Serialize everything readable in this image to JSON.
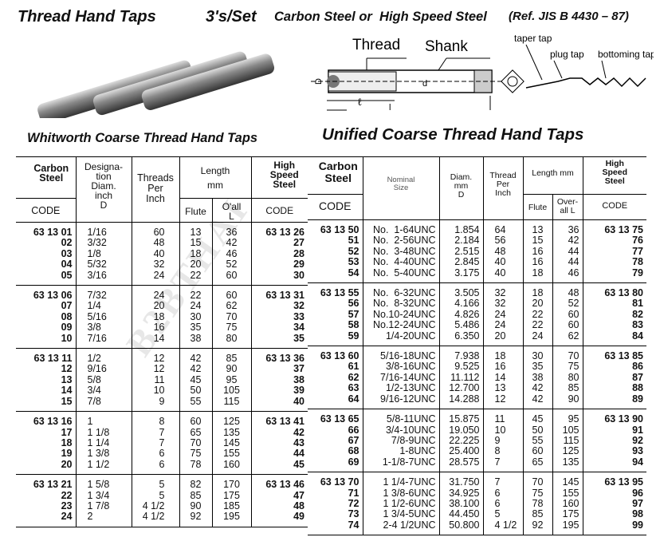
{
  "header": {
    "title": "Thread Hand Taps",
    "set": "3's/Set",
    "material": "Carbon Steel or  High Speed Steel",
    "ref": "(Ref. JIS B 4430 – 87)"
  },
  "diagram": {
    "thread": "Thread",
    "shank": "Shank",
    "D": "D",
    "d": "d",
    "l_small": "ℓ",
    "L": "l",
    "taper": "taper tap",
    "plug": "plug tap",
    "bottoming": "bottoming tap"
  },
  "watermark": "B2BTHAI",
  "whitworth": {
    "title": "Whitworth Coarse Thread Hand Taps",
    "headers": {
      "carbon": "Carbon Steel",
      "code": "CODE",
      "desig": "Designa-\ntion\nDiam.\ninch\nD",
      "threads": "Threads\nPer\nInch",
      "length": "Length\nmm",
      "flute": "Flute",
      "oall": "O'all\nL",
      "hss": "High\nSpeed\nSteel",
      "hss_code": "CODE"
    },
    "groups": [
      {
        "code": [
          "63 13 01",
          "02",
          "03",
          "04",
          "05"
        ],
        "diam": [
          "1/16",
          "3/32",
          "1/8",
          "5/32",
          "3/16"
        ],
        "tpi": [
          "60",
          "48",
          "40",
          "32",
          "24"
        ],
        "flute": [
          "13",
          "15",
          "18",
          "20",
          "22"
        ],
        "oall": [
          "36",
          "42",
          "46",
          "52",
          "60"
        ],
        "hss": [
          "63 13 26",
          "27",
          "28",
          "29",
          "30"
        ]
      },
      {
        "code": [
          "63 13 06",
          "07",
          "08",
          "09",
          "10"
        ],
        "diam": [
          "7/32",
          "1/4",
          "5/16",
          "3/8",
          "7/16"
        ],
        "tpi": [
          "24",
          "20",
          "18",
          "16",
          "14"
        ],
        "flute": [
          "22",
          "24",
          "30",
          "35",
          "38"
        ],
        "oall": [
          "60",
          "62",
          "70",
          "75",
          "80"
        ],
        "hss": [
          "63 13 31",
          "32",
          "33",
          "34",
          "35"
        ]
      },
      {
        "code": [
          "63 13 11",
          "12",
          "13",
          "14",
          "15"
        ],
        "diam": [
          "1/2",
          "9/16",
          "5/8",
          "3/4",
          "7/8"
        ],
        "tpi": [
          "12",
          "12",
          "11",
          "10",
          "9"
        ],
        "flute": [
          "42",
          "42",
          "45",
          "50",
          "55"
        ],
        "oall": [
          "85",
          "90",
          "95",
          "105",
          "115"
        ],
        "hss": [
          "63 13 36",
          "37",
          "38",
          "39",
          "40"
        ]
      },
      {
        "code": [
          "63 13 16",
          "17",
          "18",
          "19",
          "20"
        ],
        "diam": [
          "1",
          "1 1/8",
          "1 1/4",
          "1 3/8",
          "1 1/2"
        ],
        "tpi": [
          "8",
          "7",
          "7",
          "6",
          "6"
        ],
        "flute": [
          "60",
          "65",
          "70",
          "75",
          "78"
        ],
        "oall": [
          "125",
          "135",
          "145",
          "155",
          "160"
        ],
        "hss": [
          "63 13 41",
          "42",
          "43",
          "44",
          "45"
        ]
      },
      {
        "code": [
          "63 13 21",
          "22",
          "23",
          "24"
        ],
        "diam": [
          "1 5/8",
          "1 3/4",
          "1 7/8",
          "2"
        ],
        "tpi": [
          "5",
          "5",
          "4 1/2",
          "4 1/2"
        ],
        "flute": [
          "82",
          "85",
          "90",
          "92"
        ],
        "oall": [
          "170",
          "175",
          "185",
          "195"
        ],
        "hss": [
          "63 13 46",
          "47",
          "48",
          "49"
        ]
      }
    ]
  },
  "unified": {
    "title": "Unified Coarse Thread Hand Taps",
    "headers": {
      "carbon": "Carbon\nSteel",
      "code": "CODE",
      "nominal": "Nominal\nSize",
      "diam": "Diam.\nmm\nD",
      "thread": "Thread\nPer\nInch",
      "length": "Length mm",
      "flute": "Flute",
      "overall": "Over-\nall L",
      "hss": "High\nSpeed\nSteel",
      "hss_code": "CODE"
    },
    "groups": [
      {
        "code": [
          "63 13 50",
          "51",
          "52",
          "53",
          "54"
        ],
        "nominal": [
          "No.  1-64UNC",
          "No.  2-56UNC",
          "No.  3-48UNC",
          "No.  4-40UNC",
          "No.  5-40UNC"
        ],
        "diam": [
          "1.854",
          "2.184",
          "2.515",
          "2.845",
          "3.175"
        ],
        "tpi": [
          "64",
          "56",
          "48",
          "40",
          "40"
        ],
        "flute": [
          "13",
          "15",
          "16",
          "16",
          "18"
        ],
        "oall": [
          "36",
          "42",
          "44",
          "44",
          "46"
        ],
        "hss": [
          "63 13 75",
          "76",
          "77",
          "78",
          "79"
        ]
      },
      {
        "code": [
          "63 13 55",
          "56",
          "57",
          "58",
          "59"
        ],
        "nominal": [
          "No.  6-32UNC",
          "No.  8-32UNC",
          "No.10-24UNC",
          "No.12-24UNC",
          "1/4-20UNC"
        ],
        "diam": [
          "3.505",
          "4.166",
          "4.826",
          "5.486",
          "6.350"
        ],
        "tpi": [
          "32",
          "32",
          "24",
          "24",
          "20"
        ],
        "flute": [
          "18",
          "20",
          "22",
          "22",
          "24"
        ],
        "oall": [
          "48",
          "52",
          "60",
          "60",
          "62"
        ],
        "hss": [
          "63 13 80",
          "81",
          "82",
          "83",
          "84"
        ]
      },
      {
        "code": [
          "63 13 60",
          "61",
          "62",
          "63",
          "64"
        ],
        "nominal": [
          "5/16-18UNC",
          "3/8-16UNC",
          "7/16-14UNC",
          "1/2-13UNC",
          "9/16-12UNC"
        ],
        "diam": [
          "7.938",
          "9.525",
          "11.112",
          "12.700",
          "14.288"
        ],
        "tpi": [
          "18",
          "16",
          "14",
          "13",
          "12"
        ],
        "flute": [
          "30",
          "35",
          "38",
          "42",
          "42"
        ],
        "oall": [
          "70",
          "75",
          "80",
          "85",
          "90"
        ],
        "hss": [
          "63 13 85",
          "86",
          "87",
          "88",
          "89"
        ]
      },
      {
        "code": [
          "63 13 65",
          "66",
          "67",
          "68",
          "69"
        ],
        "nominal": [
          "5/8-11UNC",
          "3/4-10UNC",
          "7/8-9UNC",
          "1-8UNC",
          "1-1/8-7UNC"
        ],
        "diam": [
          "15.875",
          "19.050",
          "22.225",
          "25.400",
          "28.575"
        ],
        "tpi": [
          "11",
          "10",
          "9",
          "8",
          "7"
        ],
        "flute": [
          "45",
          "50",
          "55",
          "60",
          "65"
        ],
        "oall": [
          "95",
          "105",
          "115",
          "125",
          "135"
        ],
        "hss": [
          "63 13 90",
          "91",
          "92",
          "93",
          "94"
        ]
      },
      {
        "code": [
          "63 13 70",
          "71",
          "72",
          "73",
          "74"
        ],
        "nominal": [
          "1 1/4-7UNC",
          "1 3/8-6UNC",
          "1 1/2-6UNC",
          "1 3/4-5UNC",
          "2-4 1/2UNC"
        ],
        "diam": [
          "31.750",
          "34.925",
          "38.100",
          "44.450",
          "50.800"
        ],
        "tpi": [
          "7",
          "6",
          "6",
          "5",
          "4 1/2"
        ],
        "flute": [
          "70",
          "75",
          "78",
          "85",
          "92"
        ],
        "oall": [
          "145",
          "155",
          "160",
          "175",
          "195"
        ],
        "hss": [
          "63 13 95",
          "96",
          "97",
          "98",
          "99"
        ]
      }
    ]
  }
}
